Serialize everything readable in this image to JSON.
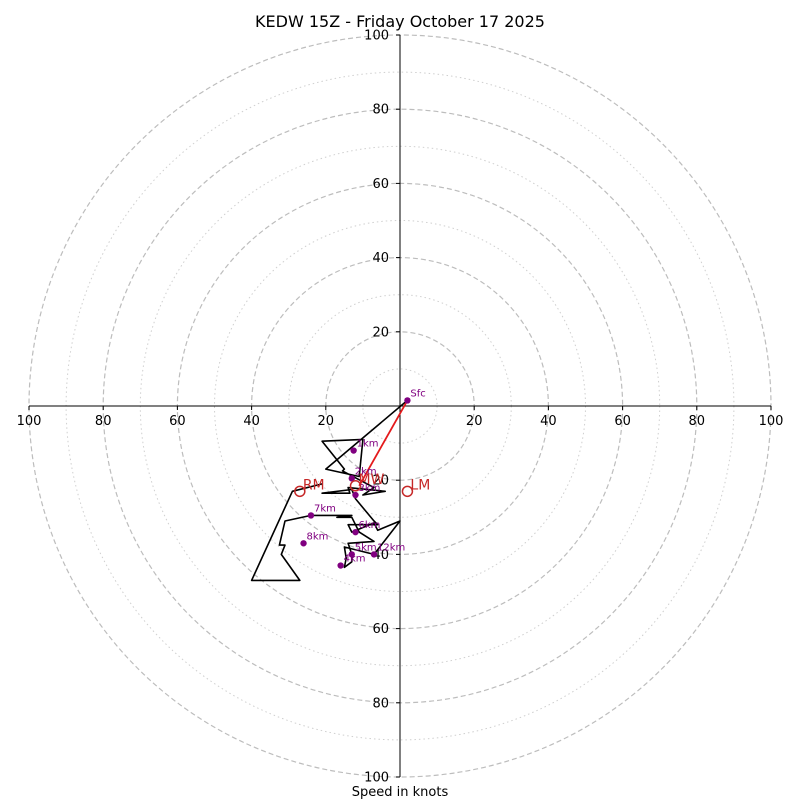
{
  "chart_data": {
    "type": "hodograph",
    "title": "KEDW 15Z - Friday October 17 2025",
    "xlabel": "Speed in knots",
    "max_speed": 100,
    "rings": [
      20,
      40,
      60,
      80,
      100
    ],
    "minor_rings": [
      10,
      30,
      50,
      70,
      90
    ],
    "x_tick_labels": [
      "100",
      "80",
      "60",
      "40",
      "20",
      "20",
      "40",
      "60",
      "80",
      "100"
    ],
    "y_tick_labels_top": [
      "20",
      "40",
      "60",
      "80",
      "100"
    ],
    "y_tick_labels_bottom": [
      "20",
      "40",
      "60",
      "80",
      "100"
    ],
    "trace": [
      {
        "u": 2,
        "v": 1.5
      },
      {
        "u": -20,
        "v": -17
      },
      {
        "u": -11,
        "v": -19
      },
      {
        "u": -10,
        "v": -9
      },
      {
        "u": -21,
        "v": -9.5
      },
      {
        "u": -15,
        "v": -17
      },
      {
        "u": -15.5,
        "v": -17.5
      },
      {
        "u": -7,
        "v": -22
      },
      {
        "u": -10,
        "v": -24
      },
      {
        "u": -4,
        "v": -23
      },
      {
        "u": -14,
        "v": -22
      },
      {
        "u": -13.5,
        "v": -23.5
      },
      {
        "u": -21,
        "v": -23.5
      },
      {
        "u": -13,
        "v": -22.5
      },
      {
        "u": -12,
        "v": -25
      },
      {
        "u": -7,
        "v": -31
      },
      {
        "u": -6,
        "v": -32
      },
      {
        "u": -14,
        "v": -32
      },
      {
        "u": -13,
        "v": -34
      },
      {
        "u": -7,
        "v": -31.5
      },
      {
        "u": -6,
        "v": -33.5
      },
      {
        "u": 0,
        "v": -31
      },
      {
        "u": -7,
        "v": -40
      },
      {
        "u": -15,
        "v": -38
      },
      {
        "u": -14.5,
        "v": -41
      },
      {
        "u": -15,
        "v": -43.5
      },
      {
        "u": -13,
        "v": -42
      },
      {
        "u": -13,
        "v": -40
      },
      {
        "u": -14,
        "v": -37
      },
      {
        "u": -7,
        "v": -36.5
      },
      {
        "u": -11,
        "v": -34
      },
      {
        "u": -13,
        "v": -30
      },
      {
        "u": -17,
        "v": -30
      },
      {
        "u": -13,
        "v": -29.5
      },
      {
        "u": -24,
        "v": -29.5
      },
      {
        "u": -31,
        "v": -31
      },
      {
        "u": -32.5,
        "v": -37.5
      },
      {
        "u": -31,
        "v": -37.5
      },
      {
        "u": -32,
        "v": -40
      },
      {
        "u": -27,
        "v": -47
      },
      {
        "u": -40,
        "v": -47
      },
      {
        "u": -29,
        "v": -23
      },
      {
        "u": -21,
        "v": -21
      }
    ],
    "height_points": [
      {
        "label": "Sfc",
        "u": 2,
        "v": 1.5
      },
      {
        "label": "1km",
        "u": -12.5,
        "v": -12
      },
      {
        "label": "2km",
        "u": -13,
        "v": -19.5
      },
      {
        "label": "3km",
        "u": -12,
        "v": -24
      },
      {
        "label": "4km",
        "u": -16,
        "v": -43
      },
      {
        "label": "5km",
        "u": -13,
        "v": -40
      },
      {
        "label": "6km",
        "u": -12,
        "v": -34
      },
      {
        "label": "7km",
        "u": -24,
        "v": -29.5
      },
      {
        "label": "8km",
        "u": -26,
        "v": -37
      },
      {
        "label": "12km",
        "u": -7,
        "v": -40
      }
    ],
    "storm_motion": {
      "MW": {
        "label": "MW",
        "u": -12,
        "v": -21.5
      },
      "RM": {
        "label": "RM",
        "u": -27,
        "v": -23
      },
      "LM": {
        "label": "LM",
        "u": 2,
        "v": -23
      }
    },
    "shear_vector": {
      "from": {
        "u": 2,
        "v": 1.5
      },
      "to": {
        "u": -11,
        "v": -21.5
      }
    },
    "colors": {
      "trace": "#000000",
      "height_point": "#800080",
      "storm_motion": "#c62828",
      "shear_vector": "#e41a1c",
      "grid": "#bdbdbd"
    }
  }
}
